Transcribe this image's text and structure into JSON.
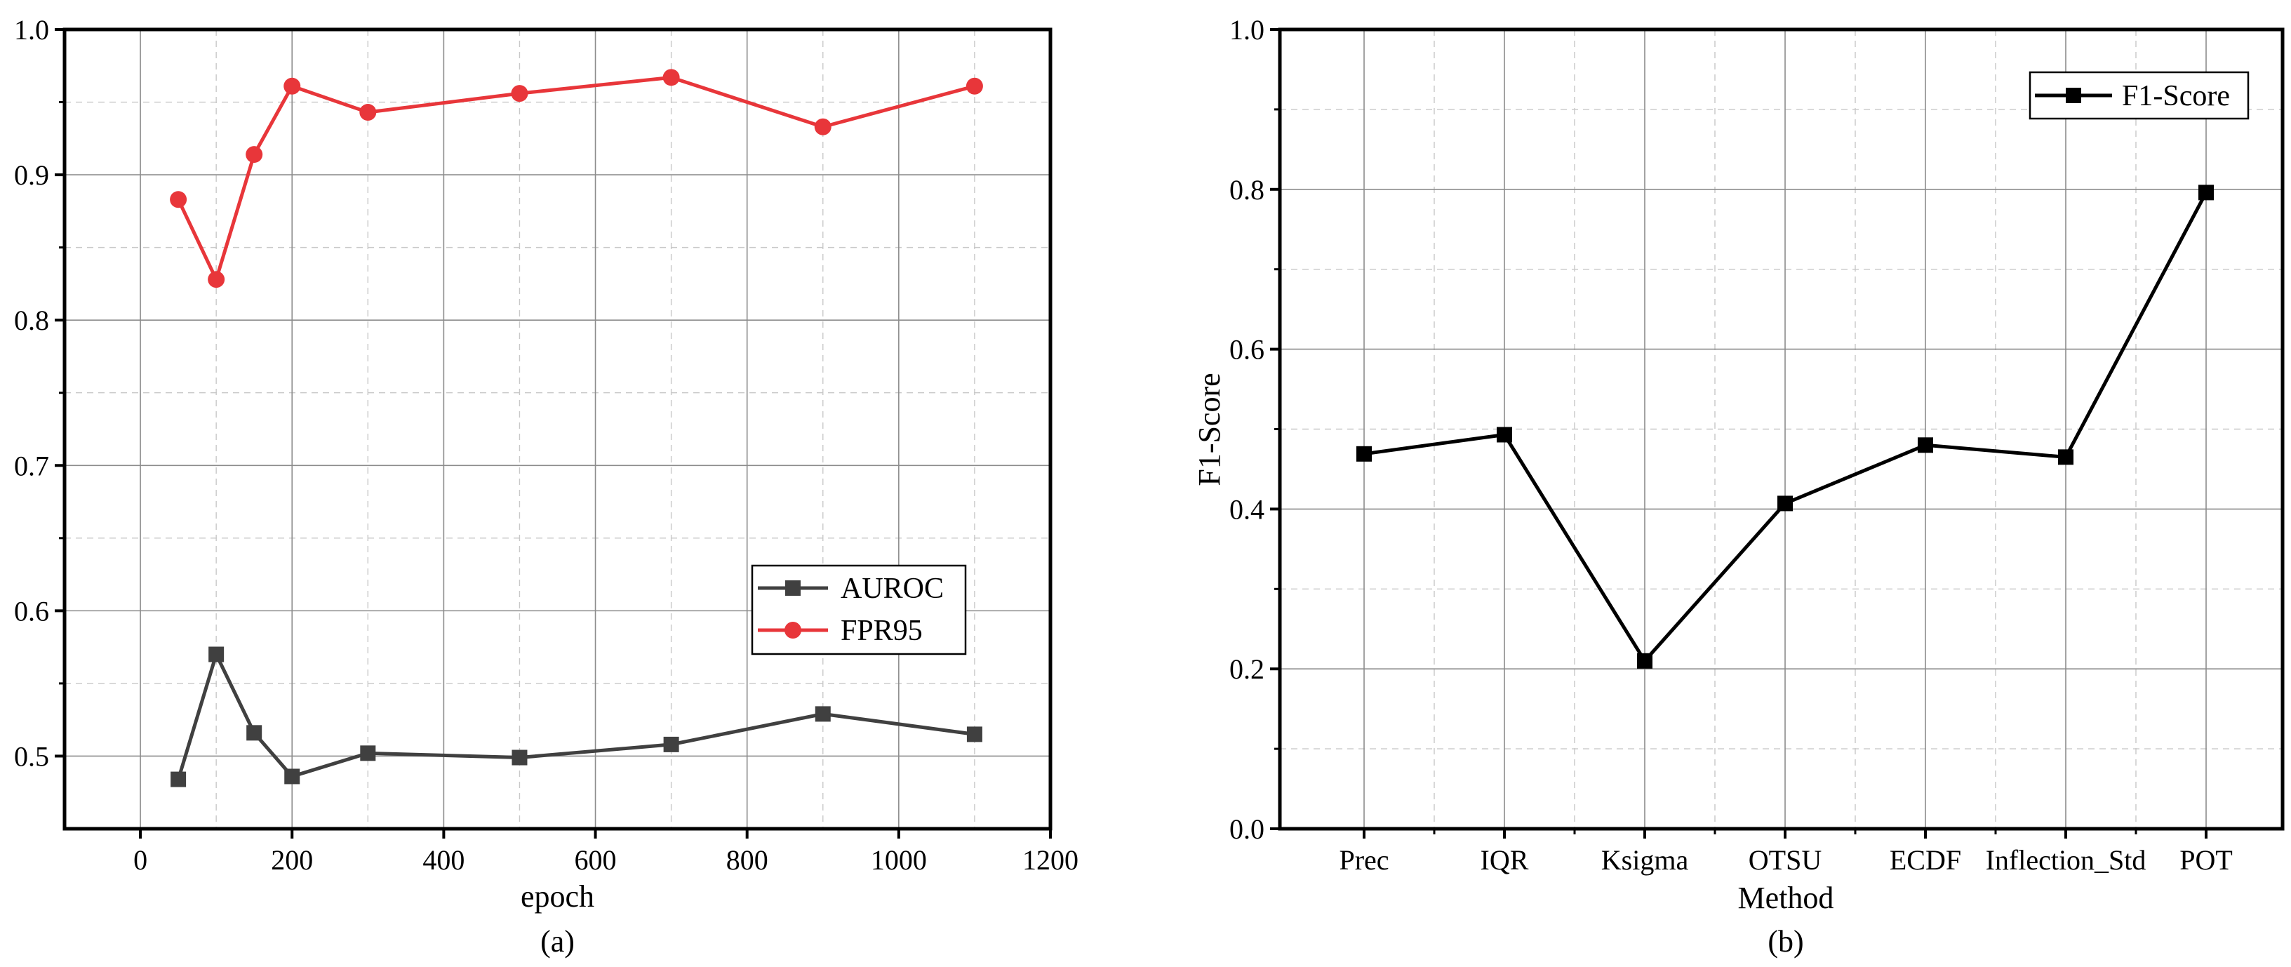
{
  "chart_data": [
    {
      "type": "line",
      "caption": "(a)",
      "title": "",
      "xlabel": "epoch",
      "ylabel": "",
      "xlim": [
        -100,
        1200
      ],
      "ylim": [
        0.45,
        1.0
      ],
      "xticks": [
        0,
        200,
        400,
        600,
        800,
        1000,
        1200
      ],
      "xtick_labels": [
        "0",
        "200",
        "400",
        "600",
        "800",
        "1000",
        "1200"
      ],
      "yticks": [
        0.5,
        0.6,
        0.7,
        0.8,
        0.9,
        1.0
      ],
      "ytick_labels": [
        "0.5",
        "0.6",
        "0.7",
        "0.8",
        "0.9",
        "1.0"
      ],
      "grid": true,
      "legend_position": "lower-right",
      "series": [
        {
          "name": "AUROC",
          "color": "#404040",
          "marker": "square",
          "x": [
            50,
            100,
            150,
            200,
            300,
            500,
            700,
            900,
            1100
          ],
          "values": [
            0.484,
            0.57,
            0.516,
            0.486,
            0.502,
            0.499,
            0.508,
            0.529,
            0.515
          ]
        },
        {
          "name": "FPR95",
          "color": "#e8363a",
          "marker": "circle",
          "x": [
            50,
            100,
            150,
            200,
            300,
            500,
            700,
            900,
            1100
          ],
          "values": [
            0.883,
            0.828,
            0.914,
            0.961,
            0.943,
            0.956,
            0.967,
            0.933,
            0.961
          ]
        }
      ]
    },
    {
      "type": "line",
      "caption": "(b)",
      "title": "",
      "xlabel": "Method",
      "ylabel": "F1-Score",
      "ylim": [
        0.0,
        1.0
      ],
      "yticks": [
        0.0,
        0.2,
        0.4,
        0.6,
        0.8,
        1.0
      ],
      "ytick_labels": [
        "0.0",
        "0.2",
        "0.4",
        "0.6",
        "0.8",
        "1.0"
      ],
      "grid": true,
      "legend_position": "top-right",
      "categories": [
        "Prec",
        "IQR",
        "Ksigma",
        "OTSU",
        "ECDF",
        "Inflection_Std",
        "POT"
      ],
      "series": [
        {
          "name": "F1-Score",
          "color": "#000000",
          "marker": "square",
          "values": [
            0.469,
            0.493,
            0.21,
            0.407,
            0.48,
            0.465,
            0.796
          ]
        }
      ]
    }
  ]
}
